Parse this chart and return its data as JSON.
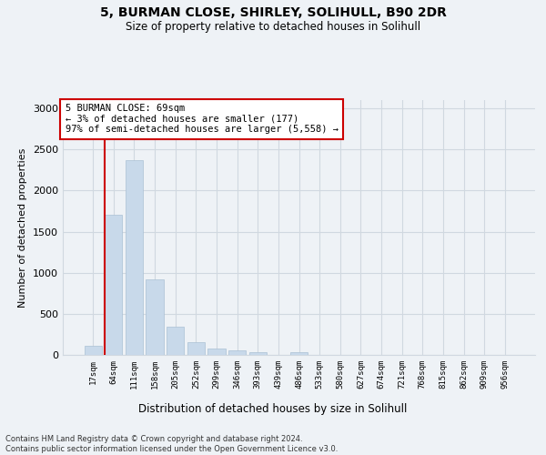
{
  "title_line1": "5, BURMAN CLOSE, SHIRLEY, SOLIHULL, B90 2DR",
  "title_line2": "Size of property relative to detached houses in Solihull",
  "xlabel": "Distribution of detached houses by size in Solihull",
  "ylabel": "Number of detached properties",
  "bar_color": "#c8d9ea",
  "bar_edgecolor": "#aac0d4",
  "annotation_text": "5 BURMAN CLOSE: 69sqm\n← 3% of detached houses are smaller (177)\n97% of semi-detached houses are larger (5,558) →",
  "vline_color": "#cc0000",
  "annotation_box_edgecolor": "#cc0000",
  "annotation_box_facecolor": "#ffffff",
  "footer_text": "Contains HM Land Registry data © Crown copyright and database right 2024.\nContains public sector information licensed under the Open Government Licence v3.0.",
  "categories": [
    "17sqm",
    "64sqm",
    "111sqm",
    "158sqm",
    "205sqm",
    "252sqm",
    "299sqm",
    "346sqm",
    "393sqm",
    "439sqm",
    "486sqm",
    "533sqm",
    "580sqm",
    "627sqm",
    "674sqm",
    "721sqm",
    "768sqm",
    "815sqm",
    "862sqm",
    "909sqm",
    "956sqm"
  ],
  "values": [
    110,
    1700,
    2370,
    920,
    340,
    150,
    75,
    52,
    30,
    0,
    30,
    0,
    0,
    0,
    0,
    0,
    0,
    0,
    0,
    0,
    0
  ],
  "ylim": [
    0,
    3100
  ],
  "yticks": [
    0,
    500,
    1000,
    1500,
    2000,
    2500,
    3000
  ],
  "grid_color": "#d0d8e0",
  "background_color": "#eef2f6",
  "vline_bar_index": 1
}
